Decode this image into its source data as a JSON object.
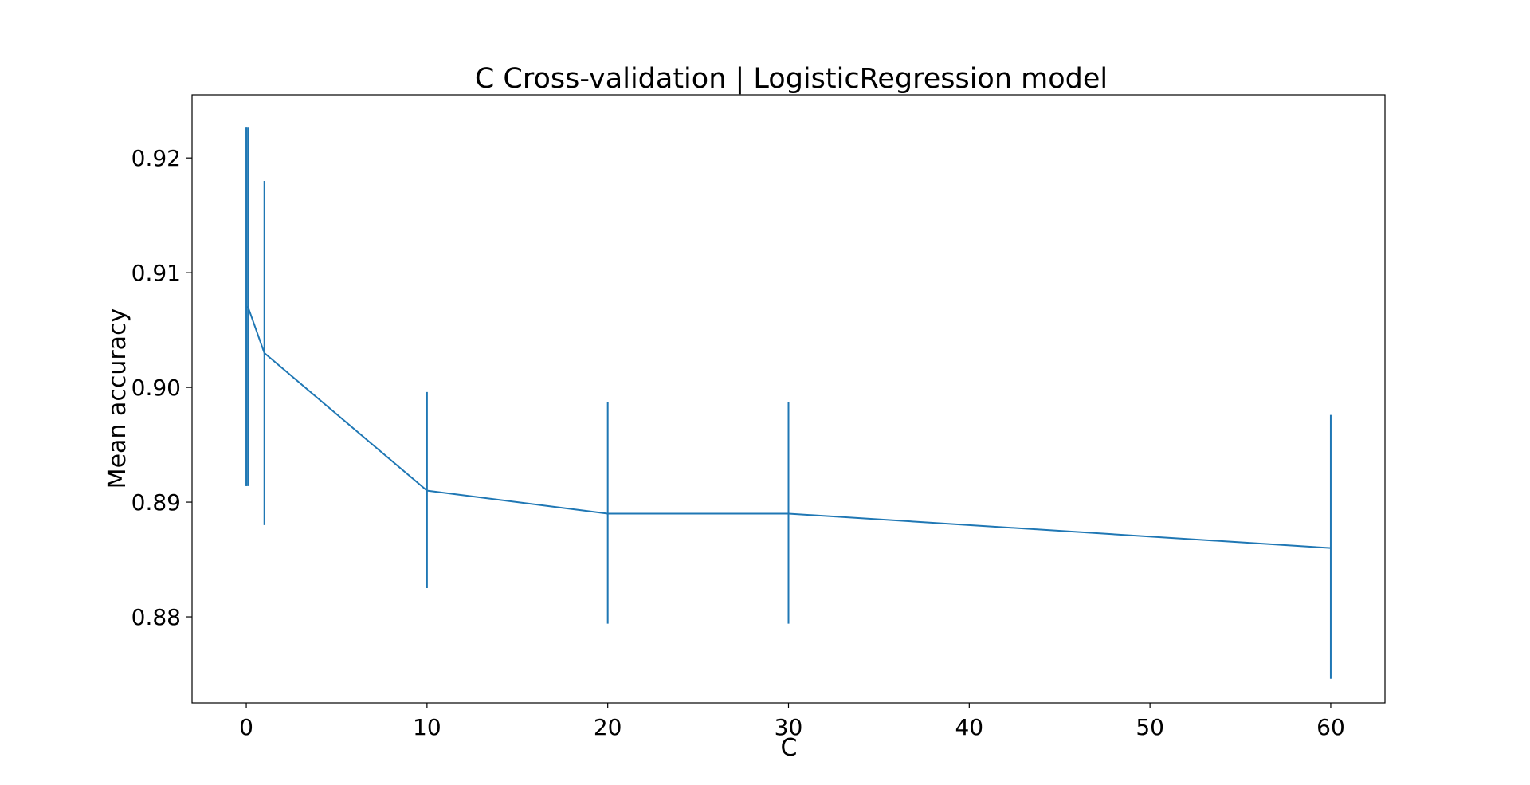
{
  "chart_data": {
    "type": "line",
    "title": "C Cross-validation | LogisticRegression model",
    "xlabel": "C",
    "ylabel": "Mean accuracy",
    "xlim": [
      -3,
      63
    ],
    "ylim": [
      0.8725,
      0.9255
    ],
    "xticks": [
      0,
      10,
      20,
      30,
      40,
      50,
      60
    ],
    "xtick_labels": [
      "0",
      "10",
      "20",
      "30",
      "40",
      "50",
      "60"
    ],
    "yticks": [
      0.88,
      0.89,
      0.9,
      0.91,
      0.92
    ],
    "ytick_labels": [
      "0.88",
      "0.89",
      "0.90",
      "0.91",
      "0.92"
    ],
    "grid": false,
    "series": [
      {
        "color": "#1f77b4",
        "points": [
          {
            "x": 0.001,
            "y": 0.907,
            "err_low": 0.8914,
            "err_high": 0.9227
          },
          {
            "x": 0.01,
            "y": 0.907,
            "err_low": 0.8914,
            "err_high": 0.9227
          },
          {
            "x": 0.1,
            "y": 0.907,
            "err_low": 0.8914,
            "err_high": 0.9227
          },
          {
            "x": 1,
            "y": 0.903,
            "err_low": 0.888,
            "err_high": 0.918
          },
          {
            "x": 10,
            "y": 0.891,
            "err_low": 0.8825,
            "err_high": 0.8996
          },
          {
            "x": 20,
            "y": 0.889,
            "err_low": 0.8794,
            "err_high": 0.8987
          },
          {
            "x": 30,
            "y": 0.889,
            "err_low": 0.8794,
            "err_high": 0.8987
          },
          {
            "x": 60,
            "y": 0.886,
            "err_low": 0.8746,
            "err_high": 0.8976
          }
        ]
      }
    ]
  }
}
